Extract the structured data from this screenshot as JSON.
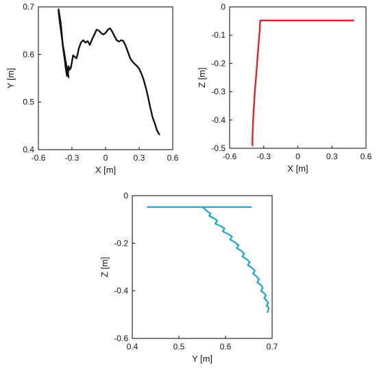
{
  "chart_data": [
    {
      "type": "line",
      "xlabel": "X [m]",
      "ylabel": "Y [m]",
      "xlim": [
        -0.6,
        0.6
      ],
      "ylim": [
        0.4,
        0.7
      ],
      "xticks": [
        "-0.6",
        "-0.3",
        "0",
        "0.3",
        "0.6"
      ],
      "yticks": [
        "0.4",
        "0.5",
        "0.6",
        "0.7"
      ],
      "grid": false,
      "series": [
        {
          "color": "#111111",
          "x": [
            -0.42,
            -0.4,
            -0.39,
            -0.38,
            -0.365,
            -0.355,
            -0.345,
            -0.335,
            -0.33,
            -0.325,
            -0.32,
            -0.31,
            -0.3,
            -0.29,
            -0.275,
            -0.26,
            -0.25,
            -0.24,
            -0.22,
            -0.2,
            -0.18,
            -0.16,
            -0.14,
            -0.12,
            -0.1,
            -0.08,
            -0.06,
            -0.04,
            -0.02,
            0.0,
            0.02,
            0.04,
            0.06,
            0.08,
            0.1,
            0.12,
            0.14,
            0.16,
            0.18,
            0.2,
            0.22,
            0.24,
            0.26,
            0.28,
            0.3,
            0.32,
            0.34,
            0.36,
            0.38,
            0.4,
            0.42,
            0.44,
            0.46,
            0.48
          ],
          "y": [
            0.695,
            0.665,
            0.64,
            0.615,
            0.59,
            0.57,
            0.555,
            0.56,
            0.575,
            0.57,
            0.568,
            0.572,
            0.585,
            0.598,
            0.595,
            0.592,
            0.6,
            0.612,
            0.625,
            0.63,
            0.625,
            0.628,
            0.62,
            0.632,
            0.642,
            0.652,
            0.65,
            0.645,
            0.642,
            0.645,
            0.652,
            0.655,
            0.648,
            0.638,
            0.63,
            0.627,
            0.63,
            0.628,
            0.618,
            0.605,
            0.592,
            0.585,
            0.58,
            0.576,
            0.57,
            0.56,
            0.547,
            0.53,
            0.51,
            0.488,
            0.468,
            0.455,
            0.44,
            0.432
          ]
        },
        {
          "color": "#111111",
          "x": [
            -0.42,
            -0.41,
            -0.4,
            -0.39,
            -0.38,
            -0.37,
            -0.36,
            -0.35,
            -0.34,
            -0.33
          ],
          "y": [
            0.692,
            0.67,
            0.652,
            0.635,
            0.618,
            0.605,
            0.59,
            0.578,
            0.565,
            0.552
          ]
        }
      ]
    },
    {
      "type": "line",
      "xlabel": "X [m]",
      "ylabel": "Z [m]",
      "xlim": [
        -0.6,
        0.6
      ],
      "ylim": [
        -0.5,
        0
      ],
      "xticks": [
        "-0.6",
        "-0.3",
        "0",
        "0.3",
        "0.6"
      ],
      "yticks": [
        "0",
        "-0.1",
        "-0.2",
        "-0.3",
        "-0.4",
        "-0.5"
      ],
      "grid": false,
      "series": [
        {
          "color": "#e0202a",
          "x": [
            -0.4,
            -0.398,
            -0.395,
            -0.392,
            -0.388,
            -0.383,
            -0.378,
            -0.372,
            -0.366,
            -0.36,
            -0.355,
            -0.35,
            -0.345,
            -0.34,
            -0.336,
            -0.332,
            -0.33,
            0.49
          ],
          "y": [
            -0.49,
            -0.45,
            -0.42,
            -0.39,
            -0.36,
            -0.33,
            -0.3,
            -0.27,
            -0.24,
            -0.21,
            -0.18,
            -0.155,
            -0.13,
            -0.105,
            -0.085,
            -0.06,
            -0.048,
            -0.048
          ]
        }
      ]
    },
    {
      "type": "line",
      "xlabel": "Y [m]",
      "ylabel": "Z [m]",
      "xlim": [
        0.4,
        0.7
      ],
      "ylim": [
        -0.6,
        0
      ],
      "xticks": [
        "0.4",
        "0.5",
        "0.6",
        "0.7"
      ],
      "yticks": [
        "0",
        "-0.2",
        "-0.4",
        "-0.6"
      ],
      "grid": false,
      "series": [
        {
          "color": "#1aa3cf",
          "x": [
            0.433,
            0.655
          ],
          "y": [
            -0.048,
            -0.048
          ]
        },
        {
          "color": "#1aa3cf",
          "x": [
            0.55,
            0.555,
            0.56,
            0.568,
            0.565,
            0.575,
            0.582,
            0.578,
            0.59,
            0.598,
            0.594,
            0.606,
            0.614,
            0.61,
            0.62,
            0.628,
            0.624,
            0.634,
            0.64,
            0.636,
            0.646,
            0.652,
            0.648,
            0.657,
            0.663,
            0.659,
            0.667,
            0.672,
            0.668,
            0.676,
            0.68,
            0.676,
            0.683,
            0.687,
            0.683,
            0.688,
            0.692,
            0.688,
            0.693,
            0.69
          ],
          "y": [
            -0.048,
            -0.055,
            -0.065,
            -0.075,
            -0.085,
            -0.095,
            -0.105,
            -0.118,
            -0.128,
            -0.138,
            -0.15,
            -0.162,
            -0.172,
            -0.184,
            -0.196,
            -0.208,
            -0.22,
            -0.232,
            -0.244,
            -0.256,
            -0.268,
            -0.28,
            -0.292,
            -0.304,
            -0.316,
            -0.328,
            -0.34,
            -0.352,
            -0.364,
            -0.376,
            -0.388,
            -0.4,
            -0.41,
            -0.42,
            -0.43,
            -0.44,
            -0.452,
            -0.462,
            -0.472,
            -0.49
          ]
        }
      ]
    }
  ]
}
